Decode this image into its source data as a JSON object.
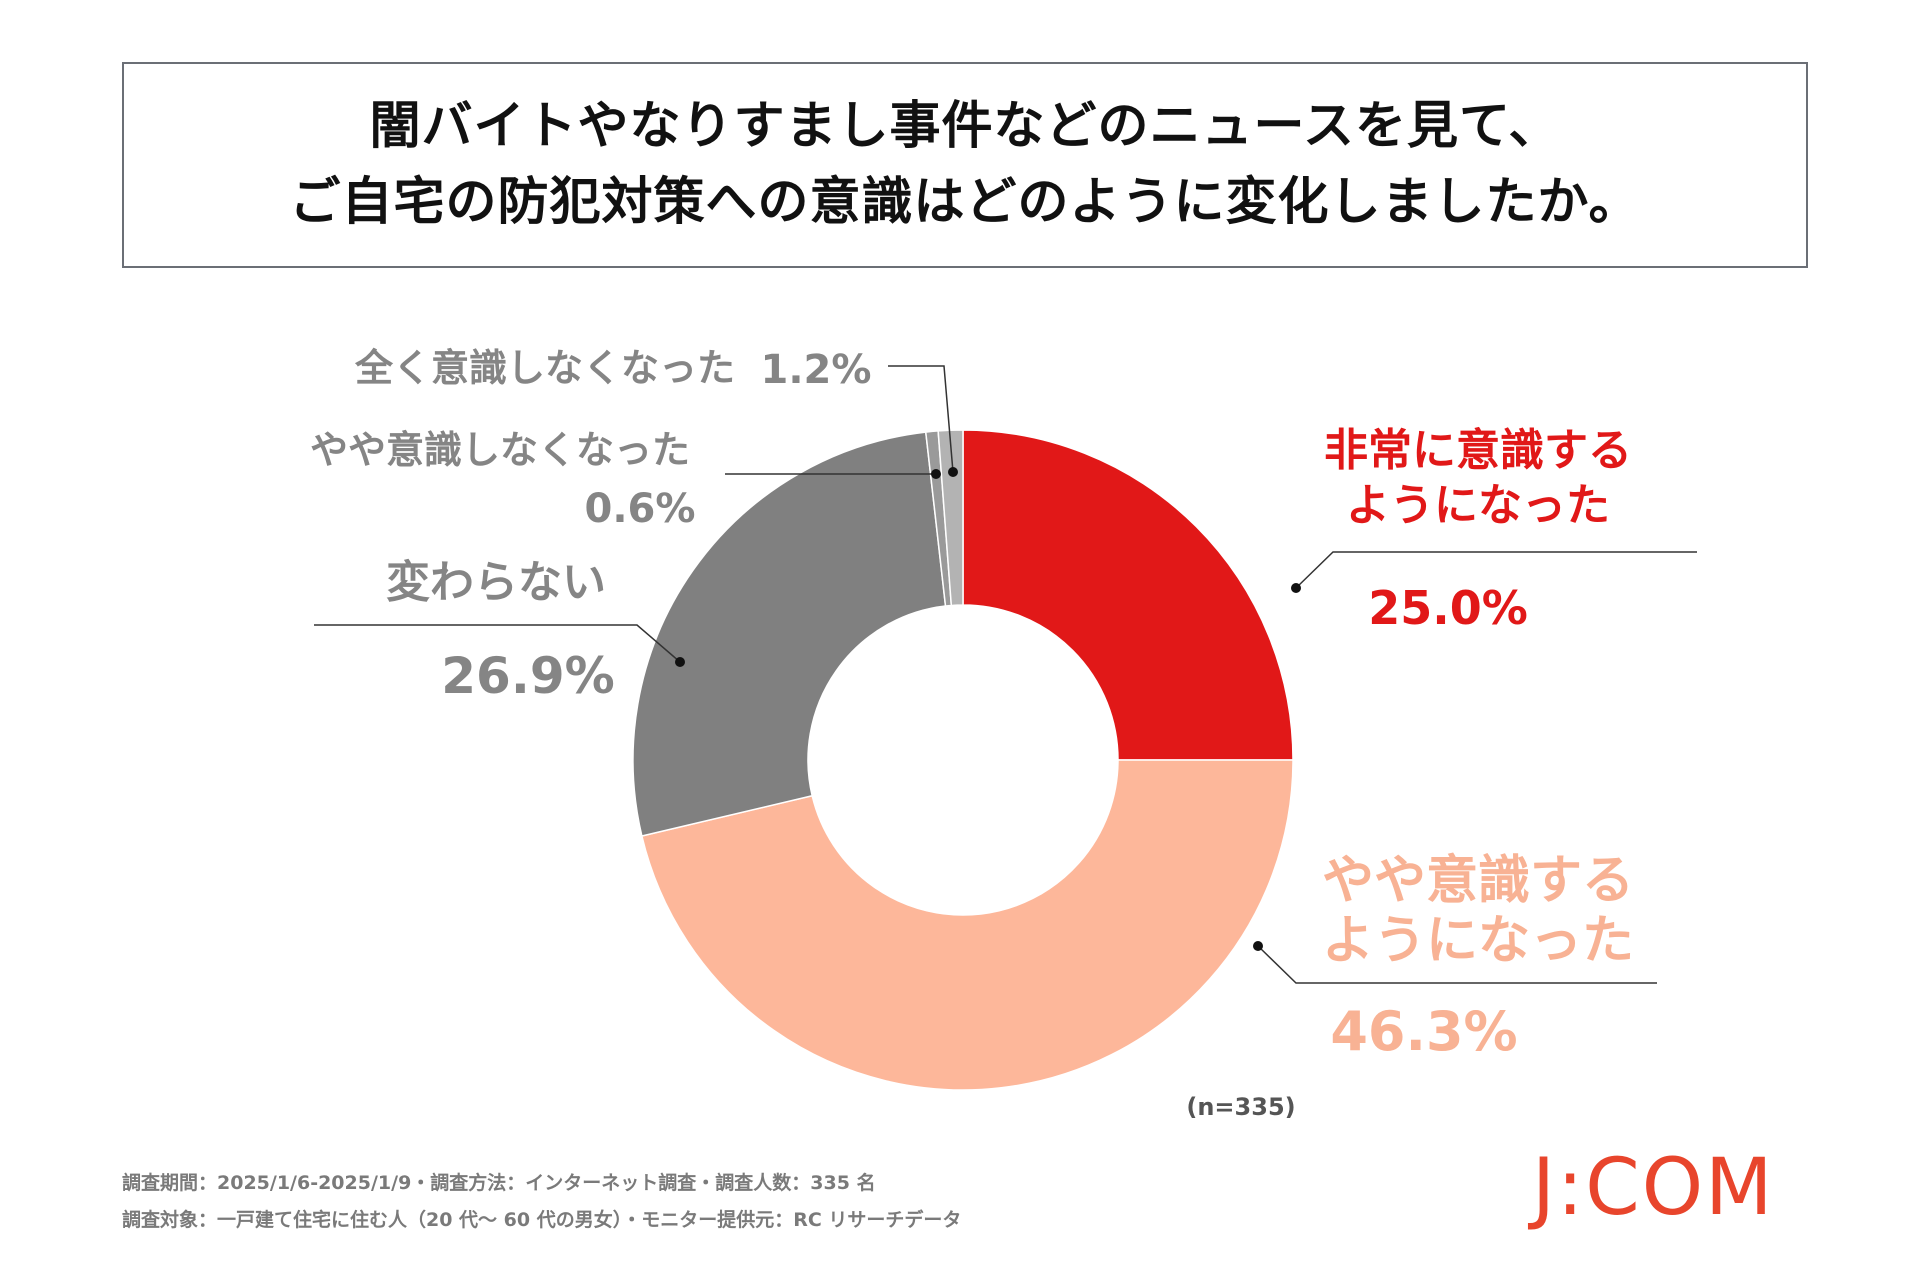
{
  "title": {
    "line1": "闇バイトやなりすまし事件などのニュースを見て、",
    "line2": "ご自宅の防犯対策への意識はどのように変化しましたか。"
  },
  "chart_data": {
    "type": "pie",
    "variant": "donut",
    "title": "闇バイトやなりすまし事件などのニュースを見て、ご自宅の防犯対策への意識はどのように変化しましたか。",
    "sample": "(n=335)",
    "slices": [
      {
        "label_lines": [
          "非常に意識する",
          "ようになった"
        ],
        "value": 25.0,
        "value_label": "25.0%",
        "color": "#e11818",
        "text_color": "#e11818"
      },
      {
        "label_lines": [
          "やや意識する",
          "ようになった"
        ],
        "value": 46.3,
        "value_label": "46.3%",
        "color": "#fdb79a",
        "text_color": "#f8b294"
      },
      {
        "label_lines": [
          "変わらない"
        ],
        "value": 26.9,
        "value_label": "26.9%",
        "color": "#808080",
        "text_color": "#858585"
      },
      {
        "label_lines": [
          "やや意識しなくなった"
        ],
        "value": 0.6,
        "value_label": "0.6%",
        "color": "#9a9a9a",
        "text_color": "#858585"
      },
      {
        "label_lines": [
          "全く意識しなくなった"
        ],
        "value": 1.2,
        "value_label": "1.2%",
        "color": "#b3b3b3",
        "text_color": "#858585"
      }
    ]
  },
  "footer": {
    "line1": "調査期間：2025/1/6-2025/1/9・調査方法：インターネット調査・調査人数：335 名",
    "line2": "調査対象：一戸建て住宅に住む人（20 代～ 60 代の男女）・モニター提供元：RC リサーチデータ"
  },
  "logo": {
    "text": "J:COM"
  }
}
